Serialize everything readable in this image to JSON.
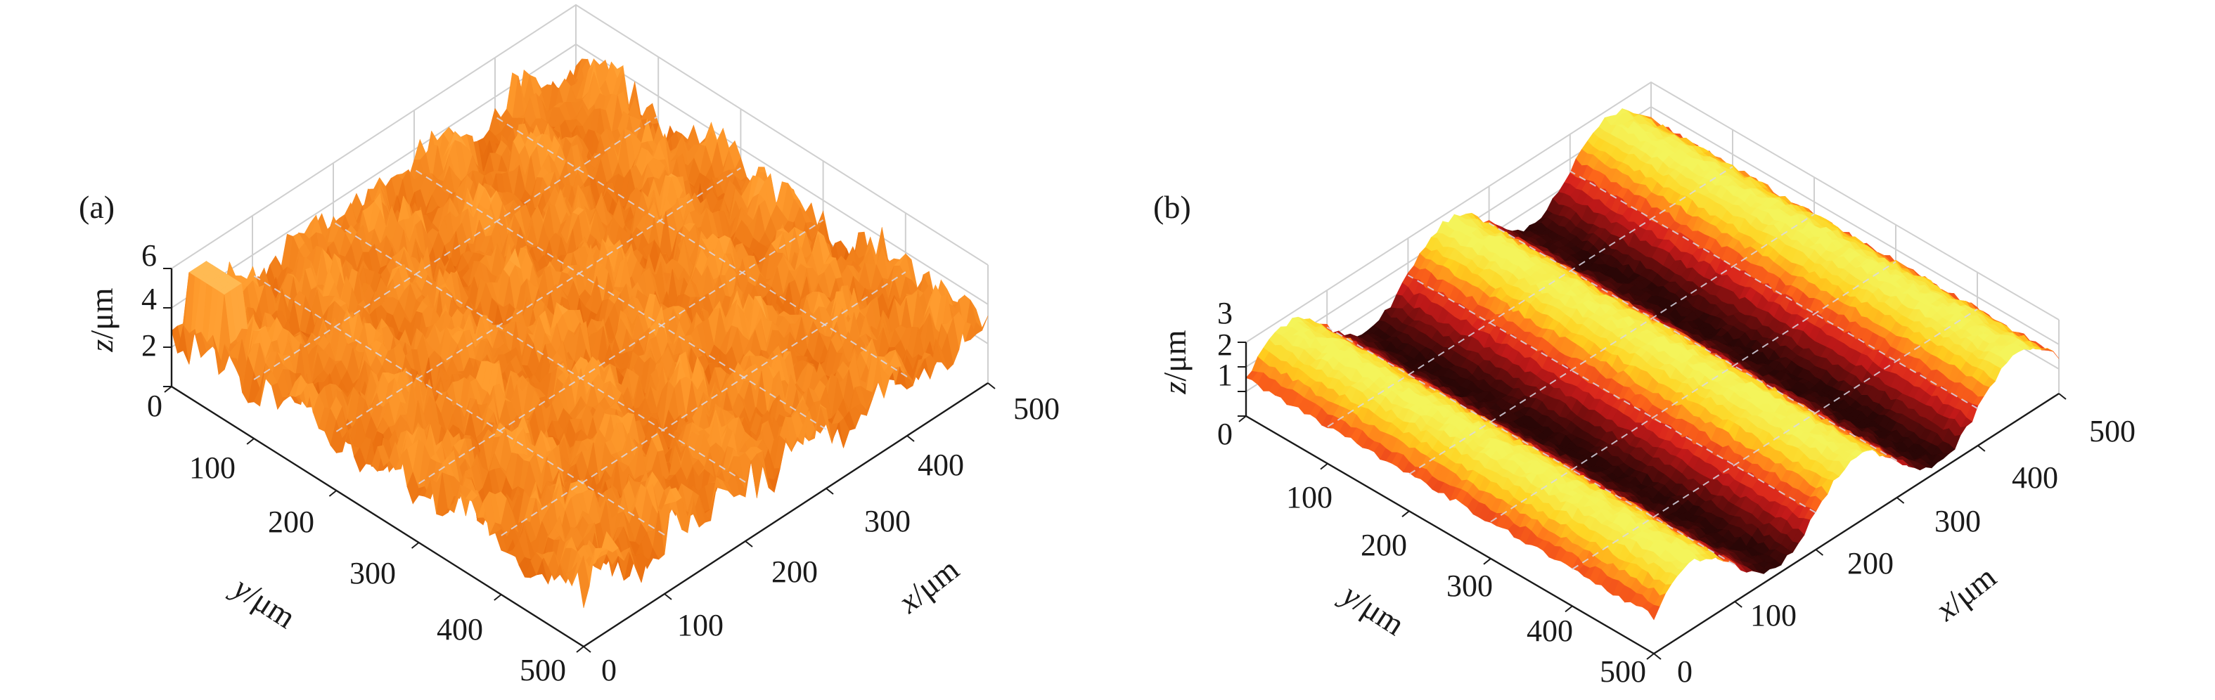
{
  "chart_data": [
    {
      "type": "surface3d",
      "panel_label": "(a)",
      "xlabel": "x/μm",
      "ylabel": "y/μm",
      "zlabel": "z/μm",
      "xlim": [
        0,
        500
      ],
      "ylim": [
        0,
        500
      ],
      "zlim": [
        0,
        6
      ],
      "x_ticks": [
        "0",
        "100",
        "200",
        "300",
        "400",
        "500"
      ],
      "y_ticks": [
        "100",
        "200",
        "300",
        "400",
        "500"
      ],
      "z_ticks": [
        "0",
        "2",
        "4",
        "6"
      ],
      "grid": true,
      "surface": {
        "pattern": "random-rough",
        "mean_height": 3.0,
        "amplitude": 1.6,
        "peak_height": 5.6,
        "colormap": [
          "#c84a00",
          "#ea7010",
          "#ff9c2e",
          "#ffc15c"
        ]
      }
    },
    {
      "type": "surface3d",
      "panel_label": "(b)",
      "xlabel": "x/μm",
      "ylabel": "y/μm",
      "zlabel": "z/μm",
      "xlim": [
        0,
        500
      ],
      "ylim": [
        0,
        500
      ],
      "zlim": [
        0,
        3
      ],
      "x_ticks": [
        "0",
        "100",
        "200",
        "300",
        "400",
        "500"
      ],
      "y_ticks": [
        "100",
        "200",
        "300",
        "400",
        "500"
      ],
      "z_ticks": [
        "0",
        "1",
        "2",
        "3"
      ],
      "grid": true,
      "surface": {
        "pattern": "grooves-along-y",
        "mean_height": 1.5,
        "amplitude": 1.2,
        "groove_count": 2.5,
        "colormap": [
          "#2a0606",
          "#7a0e0e",
          "#d41c1c",
          "#ff6a1a",
          "#ffd21e",
          "#f4f45a"
        ]
      }
    }
  ]
}
